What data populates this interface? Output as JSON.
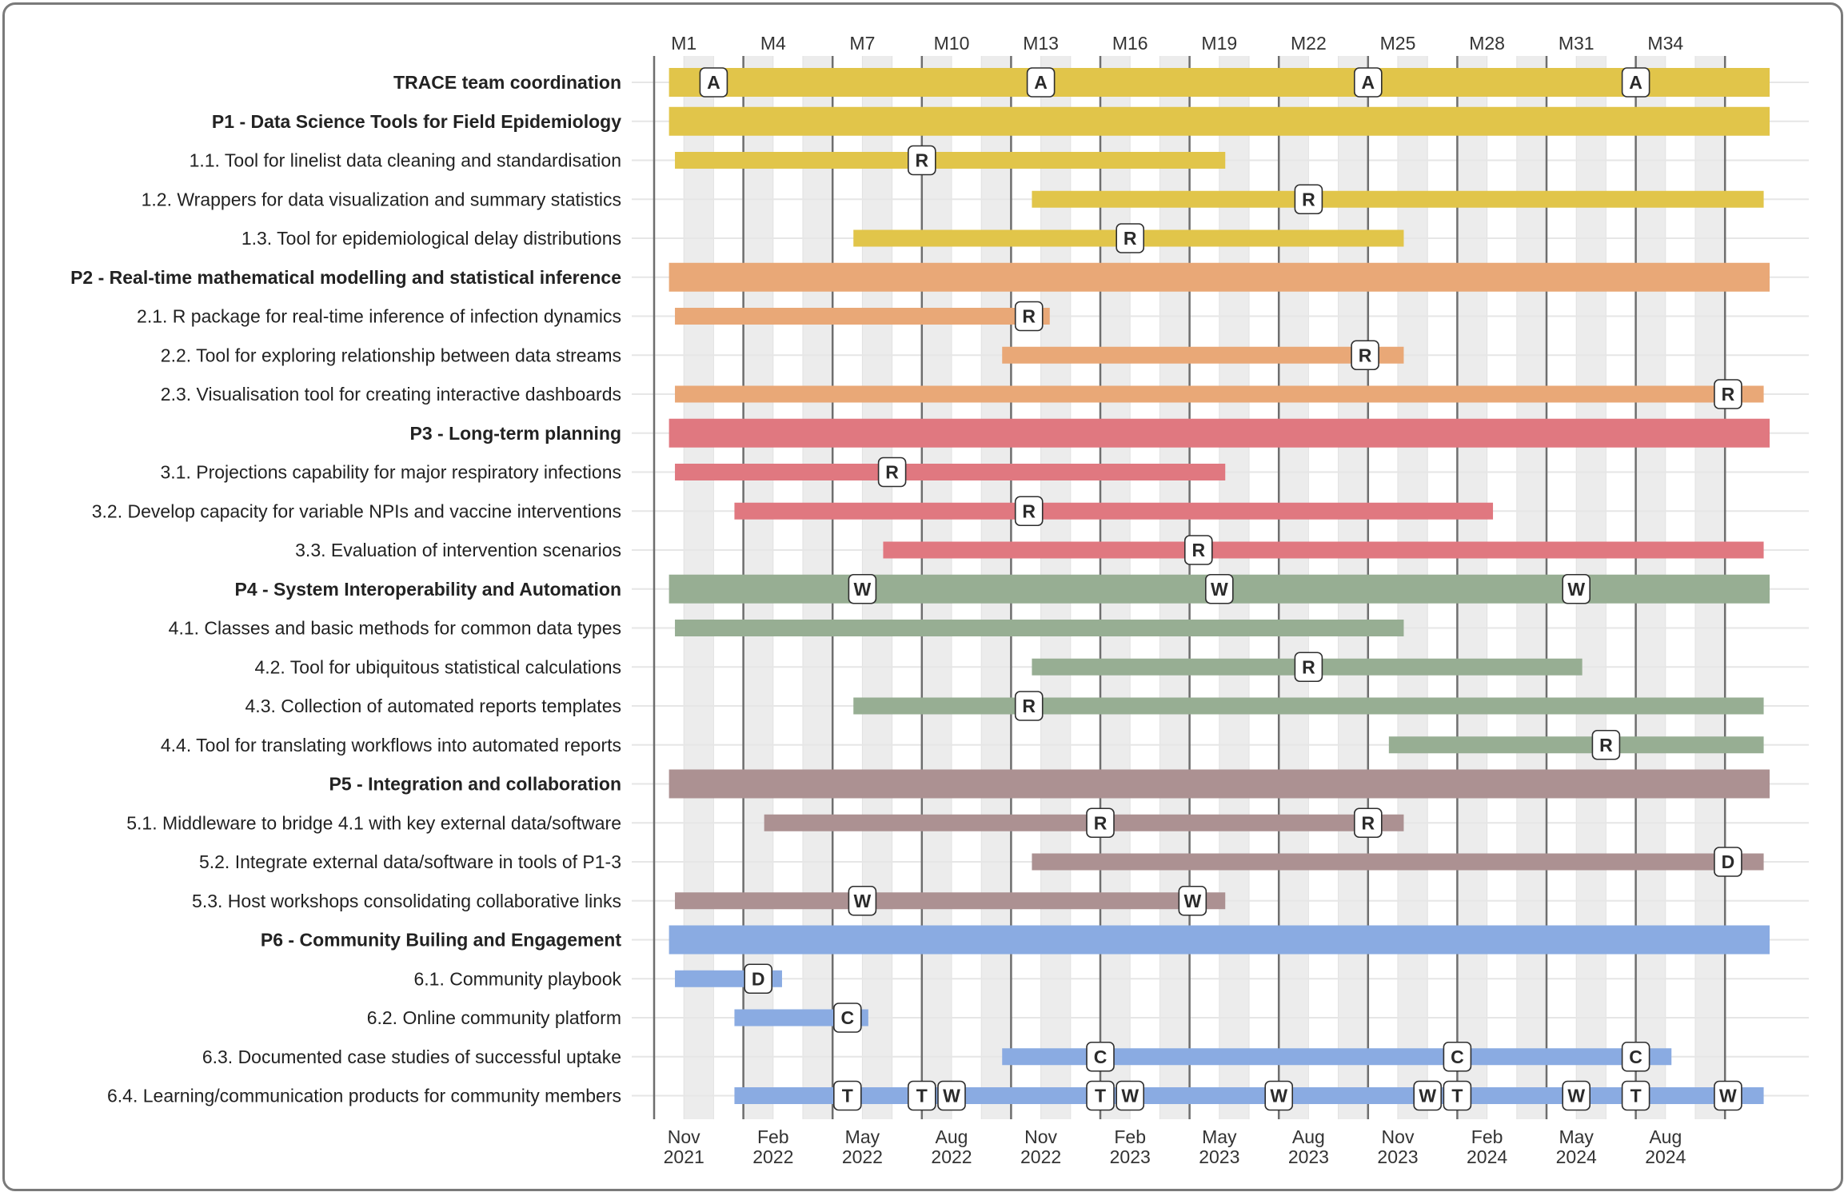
{
  "chart_data": {
    "type": "gantt",
    "x_unit": "month",
    "x_range": [
      0,
      37
    ],
    "top_ticks": [
      {
        "m": 1,
        "label": "M1"
      },
      {
        "m": 4,
        "label": "M4"
      },
      {
        "m": 7,
        "label": "M7"
      },
      {
        "m": 10,
        "label": "M10"
      },
      {
        "m": 13,
        "label": "M13"
      },
      {
        "m": 16,
        "label": "M16"
      },
      {
        "m": 19,
        "label": "M19"
      },
      {
        "m": 22,
        "label": "M22"
      },
      {
        "m": 25,
        "label": "M25"
      },
      {
        "m": 28,
        "label": "M28"
      },
      {
        "m": 31,
        "label": "M31"
      },
      {
        "m": 34,
        "label": "M34"
      }
    ],
    "bottom_ticks": [
      {
        "m": 1,
        "month": "Nov",
        "year": "2021"
      },
      {
        "m": 4,
        "month": "Feb",
        "year": "2022"
      },
      {
        "m": 7,
        "month": "May",
        "year": "2022"
      },
      {
        "m": 10,
        "month": "Aug",
        "year": "2022"
      },
      {
        "m": 13,
        "month": "Nov",
        "year": "2022"
      },
      {
        "m": 16,
        "month": "Feb",
        "year": "2023"
      },
      {
        "m": 19,
        "month": "May",
        "year": "2023"
      },
      {
        "m": 22,
        "month": "Aug",
        "year": "2023"
      },
      {
        "m": 25,
        "month": "Nov",
        "year": "2023"
      },
      {
        "m": 28,
        "month": "Feb",
        "year": "2024"
      },
      {
        "m": 31,
        "month": "May",
        "year": "2024"
      },
      {
        "m": 34,
        "month": "Aug",
        "year": "2024"
      }
    ],
    "year_lines": [
      0,
      3,
      6,
      9,
      12,
      15,
      18,
      21,
      24,
      27,
      30,
      33,
      36
    ],
    "shaded_bands": [
      [
        1,
        2
      ],
      [
        3,
        4
      ],
      [
        5,
        6
      ],
      [
        7,
        8
      ],
      [
        9,
        10
      ],
      [
        11,
        12
      ],
      [
        13,
        14
      ],
      [
        15,
        16
      ],
      [
        17,
        18
      ],
      [
        19,
        20
      ],
      [
        21,
        22
      ],
      [
        23,
        24
      ],
      [
        25,
        26
      ],
      [
        27,
        28
      ],
      [
        29,
        30
      ],
      [
        31,
        32
      ],
      [
        33,
        34
      ],
      [
        35,
        36
      ]
    ],
    "grid": true,
    "colors": {
      "P0": "#E1C54A",
      "P1": "#E1C54A",
      "P2": "#E9A877",
      "P3": "#E07880",
      "P4": "#97AE93",
      "P5": "#AC9192",
      "P6": "#8AABE2"
    },
    "tasks": [
      {
        "label": "TRACE team coordination",
        "group": "P0",
        "bold": true,
        "start": 0.5,
        "end": 37.5,
        "markers": [
          {
            "m": 2,
            "t": "A"
          },
          {
            "m": 13,
            "t": "A"
          },
          {
            "m": 24,
            "t": "A"
          },
          {
            "m": 33,
            "t": "A"
          }
        ]
      },
      {
        "label": "P1 - Data Science Tools for Field Epidemiology",
        "group": "P1",
        "bold": true,
        "start": 0.5,
        "end": 37.5,
        "markers": []
      },
      {
        "label": "1.1. Tool for linelist data cleaning and standardisation",
        "group": "P1",
        "bold": false,
        "start": 0.7,
        "end": 19.2,
        "markers": [
          {
            "m": 9,
            "t": "R"
          }
        ]
      },
      {
        "label": "1.2. Wrappers for data visualization and summary statistics",
        "group": "P1",
        "bold": false,
        "start": 12.7,
        "end": 37.3,
        "markers": [
          {
            "m": 22,
            "t": "R"
          }
        ]
      },
      {
        "label": "1.3. Tool for epidemiological delay distributions",
        "group": "P1",
        "bold": false,
        "start": 6.7,
        "end": 25.2,
        "markers": [
          {
            "m": 16,
            "t": "R"
          }
        ]
      },
      {
        "label": "P2 - Real-time mathematical modelling and statistical inference",
        "group": "P2",
        "bold": true,
        "start": 0.5,
        "end": 37.5,
        "markers": []
      },
      {
        "label": "2.1. R package for real-time inference of infection dynamics",
        "group": "P2",
        "bold": false,
        "start": 0.7,
        "end": 13.3,
        "markers": [
          {
            "m": 12.6,
            "t": "R"
          }
        ]
      },
      {
        "label": "2.2. Tool for exploring relationship between data streams",
        "group": "P2",
        "bold": false,
        "start": 11.7,
        "end": 25.2,
        "markers": [
          {
            "m": 23.9,
            "t": "R"
          }
        ]
      },
      {
        "label": "2.3. Visualisation tool for creating interactive dashboards",
        "group": "P2",
        "bold": false,
        "start": 0.7,
        "end": 37.3,
        "markers": [
          {
            "m": 36.1,
            "t": "R"
          }
        ]
      },
      {
        "label": "P3 - Long-term planning",
        "group": "P3",
        "bold": true,
        "start": 0.5,
        "end": 37.5,
        "markers": []
      },
      {
        "label": "3.1. Projections capability for major respiratory infections",
        "group": "P3",
        "bold": false,
        "start": 0.7,
        "end": 19.2,
        "markers": [
          {
            "m": 8,
            "t": "R"
          }
        ]
      },
      {
        "label": "3.2. Develop capacity for variable NPIs and vaccine interventions",
        "group": "P3",
        "bold": false,
        "start": 2.7,
        "end": 28.2,
        "markers": [
          {
            "m": 12.6,
            "t": "R"
          }
        ]
      },
      {
        "label": "3.3. Evaluation of intervention scenarios",
        "group": "P3",
        "bold": false,
        "start": 7.7,
        "end": 37.3,
        "markers": [
          {
            "m": 18.3,
            "t": "R"
          }
        ]
      },
      {
        "label": "P4 - System Interoperability and Automation",
        "group": "P4",
        "bold": true,
        "start": 0.5,
        "end": 37.5,
        "markers": [
          {
            "m": 7,
            "t": "W"
          },
          {
            "m": 19,
            "t": "W"
          },
          {
            "m": 31,
            "t": "W"
          }
        ]
      },
      {
        "label": "4.1. Classes and basic methods for common data types",
        "group": "P4",
        "bold": false,
        "start": 0.7,
        "end": 25.2,
        "markers": []
      },
      {
        "label": "4.2. Tool for ubiquitous statistical calculations",
        "group": "P4",
        "bold": false,
        "start": 12.7,
        "end": 31.2,
        "markers": [
          {
            "m": 22,
            "t": "R"
          }
        ]
      },
      {
        "label": "4.3. Collection of automated reports templates",
        "group": "P4",
        "bold": false,
        "start": 6.7,
        "end": 37.3,
        "markers": [
          {
            "m": 12.6,
            "t": "R"
          }
        ]
      },
      {
        "label": "4.4. Tool for translating workflows into automated reports",
        "group": "P4",
        "bold": false,
        "start": 24.7,
        "end": 37.3,
        "markers": [
          {
            "m": 32,
            "t": "R"
          }
        ]
      },
      {
        "label": "P5 - Integration and collaboration",
        "group": "P5",
        "bold": true,
        "start": 0.5,
        "end": 37.5,
        "markers": []
      },
      {
        "label": "5.1. Middleware to bridge 4.1 with key external data/software",
        "group": "P5",
        "bold": false,
        "start": 3.7,
        "end": 25.2,
        "markers": [
          {
            "m": 15,
            "t": "R"
          },
          {
            "m": 24,
            "t": "R"
          }
        ]
      },
      {
        "label": "5.2. Integrate external data/software in tools of P1-3",
        "group": "P5",
        "bold": false,
        "start": 12.7,
        "end": 37.3,
        "markers": [
          {
            "m": 36.1,
            "t": "D"
          }
        ]
      },
      {
        "label": "5.3. Host workshops consolidating collaborative links",
        "group": "P5",
        "bold": false,
        "start": 0.7,
        "end": 19.2,
        "markers": [
          {
            "m": 7,
            "t": "W"
          },
          {
            "m": 18.1,
            "t": "W"
          }
        ]
      },
      {
        "label": "P6 - Community Builing and Engagement",
        "group": "P6",
        "bold": true,
        "start": 0.5,
        "end": 37.5,
        "markers": []
      },
      {
        "label": "6.1. Community playbook",
        "group": "P6",
        "bold": false,
        "start": 0.7,
        "end": 4.3,
        "markers": [
          {
            "m": 3.5,
            "t": "D"
          }
        ]
      },
      {
        "label": "6.2. Online community platform",
        "group": "P6",
        "bold": false,
        "start": 2.7,
        "end": 7.2,
        "markers": [
          {
            "m": 6.5,
            "t": "C"
          }
        ]
      },
      {
        "label": "6.3. Documented case studies of successful uptake",
        "group": "P6",
        "bold": false,
        "start": 11.7,
        "end": 34.2,
        "markers": [
          {
            "m": 15,
            "t": "C"
          },
          {
            "m": 27,
            "t": "C"
          },
          {
            "m": 33,
            "t": "C"
          }
        ]
      },
      {
        "label": "6.4. Learning/communication products for community members",
        "group": "P6",
        "bold": false,
        "start": 2.7,
        "end": 37.3,
        "markers": [
          {
            "m": 6.5,
            "t": "T"
          },
          {
            "m": 9,
            "t": "T"
          },
          {
            "m": 10,
            "t": "W"
          },
          {
            "m": 15,
            "t": "T"
          },
          {
            "m": 16,
            "t": "W"
          },
          {
            "m": 21,
            "t": "W"
          },
          {
            "m": 26,
            "t": "W"
          },
          {
            "m": 27,
            "t": "T"
          },
          {
            "m": 31,
            "t": "W"
          },
          {
            "m": 33,
            "t": "T"
          },
          {
            "m": 36.1,
            "t": "W"
          }
        ]
      }
    ]
  }
}
